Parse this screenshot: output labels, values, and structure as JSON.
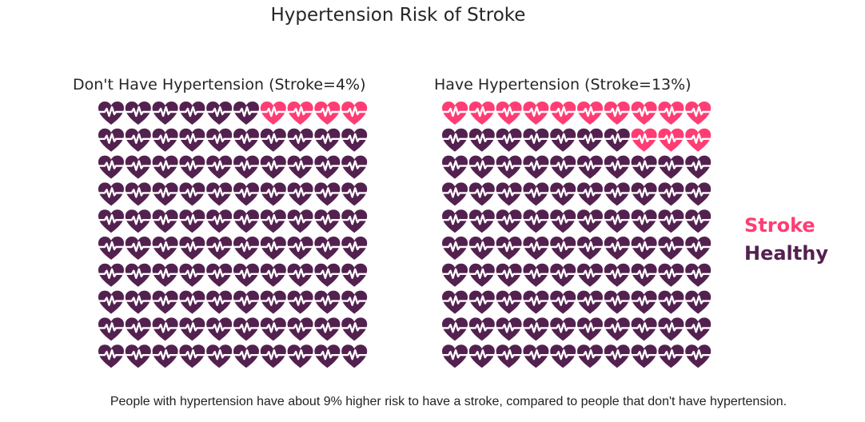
{
  "colors": {
    "stroke": "#ff3d74",
    "healthy": "#53214f",
    "text": "#262626"
  },
  "chart_data": {
    "type": "waffle",
    "title": "Hypertension Risk of Stroke",
    "grid": {
      "rows": 10,
      "columns": 10,
      "total": 100
    },
    "icon": "heart-pulse-icon",
    "legend": [
      {
        "label": "Stroke",
        "color": "#ff3d74"
      },
      {
        "label": "Healthy",
        "color": "#53214f"
      }
    ],
    "legend_position": "right",
    "panels": [
      {
        "title": "Don't Have Hypertension (Stroke=4%)",
        "stroke": 4,
        "healthy": 96
      },
      {
        "title": "Have Hypertension (Stroke=13%)",
        "stroke": 13,
        "healthy": 87
      }
    ]
  },
  "caption": "People with hypertension have about 9% higher risk to have a stroke, compared to people that don't have hypertension."
}
